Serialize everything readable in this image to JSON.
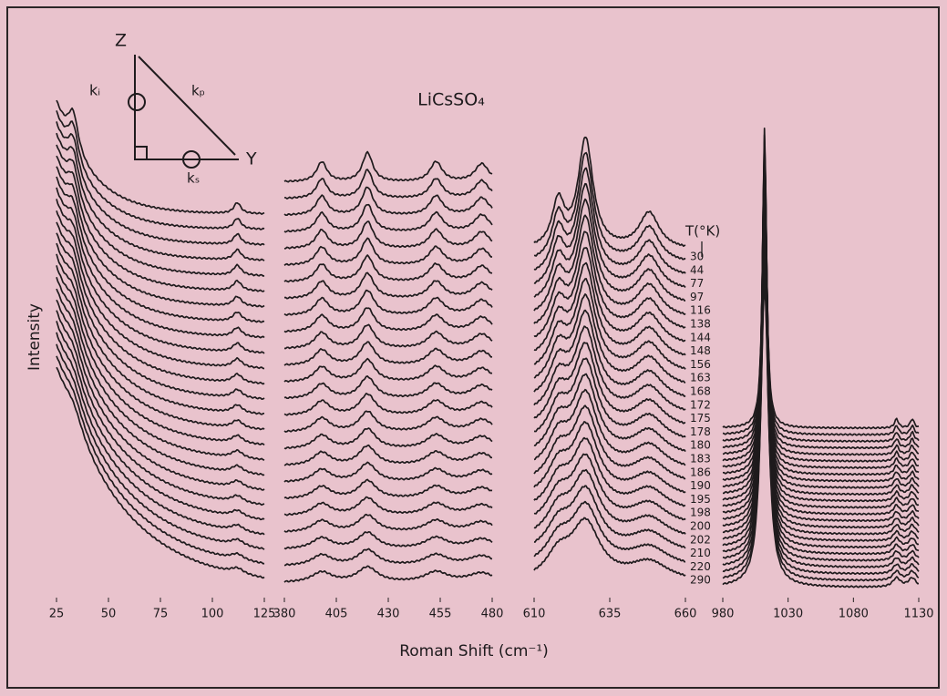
{
  "chart_data": {
    "type": "spectra",
    "title": "LiCsSO₄",
    "ylabel": "Intensity",
    "xlabel": "Roman Shift (cm⁻¹)",
    "legend_title": "T(°K)",
    "temperatures": [
      30,
      44,
      77,
      97,
      116,
      138,
      144,
      148,
      156,
      163,
      168,
      172,
      175,
      178,
      180,
      183,
      186,
      190,
      195,
      198,
      200,
      202,
      210,
      220,
      290
    ],
    "inset": {
      "z": "Z",
      "y": "Y",
      "ki": "kᵢ",
      "kp": "kₚ",
      "ks": "kₛ"
    },
    "panels": [
      {
        "xlim": [
          25,
          125
        ],
        "xticks": [
          25,
          50,
          75,
          100,
          125
        ],
        "peaks": [
          33,
          112
        ]
      },
      {
        "xlim": [
          380,
          480
        ],
        "xticks": [
          380,
          405,
          430,
          455,
          480
        ],
        "peaks": [
          398,
          420,
          453,
          475
        ]
      },
      {
        "xlim": [
          610,
          660
        ],
        "xticks": [
          610,
          635,
          660
        ],
        "peaks": [
          618,
          627,
          648
        ]
      },
      {
        "xlim": [
          980,
          1130
        ],
        "xticks": [
          980,
          1030,
          1080,
          1130
        ],
        "peaks": [
          1012,
          1113,
          1125
        ]
      }
    ]
  }
}
